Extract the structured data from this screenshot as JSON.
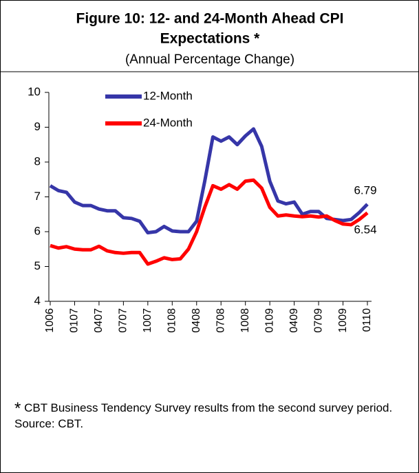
{
  "chart_data": {
    "type": "line",
    "title": [
      "Figure 10: 12- and 24-Month Ahead CPI",
      "Expectations *"
    ],
    "subtitle": "(Annual Percentage Change)",
    "categories": [
      "1006",
      null,
      null,
      "0107",
      null,
      null,
      "0407",
      null,
      null,
      "0707",
      null,
      null,
      "1007",
      null,
      null,
      "0108",
      null,
      null,
      "0408",
      null,
      null,
      "0708",
      null,
      null,
      "1008",
      null,
      null,
      "0109",
      null,
      null,
      "0409",
      null,
      null,
      "0709",
      null,
      null,
      "1009",
      null,
      null,
      "0110"
    ],
    "series": [
      {
        "name": "12-Month",
        "color": "#3636a8",
        "values": [
          7.32,
          7.18,
          7.13,
          6.85,
          6.75,
          6.75,
          6.65,
          6.6,
          6.6,
          6.4,
          6.38,
          6.3,
          5.97,
          6.0,
          6.15,
          6.02,
          6.0,
          6.0,
          6.3,
          7.45,
          8.72,
          8.6,
          8.72,
          8.5,
          8.75,
          8.95,
          8.45,
          7.45,
          6.88,
          6.8,
          6.85,
          6.5,
          6.58,
          6.58,
          6.38,
          6.35,
          6.32,
          6.35,
          6.55,
          6.79
        ]
      },
      {
        "name": "24-Month",
        "color": "#ff0000",
        "values": [
          5.6,
          5.53,
          5.57,
          5.5,
          5.48,
          5.48,
          5.58,
          5.45,
          5.4,
          5.38,
          5.4,
          5.4,
          5.07,
          5.15,
          5.25,
          5.2,
          5.22,
          5.5,
          6.0,
          6.7,
          7.32,
          7.22,
          7.35,
          7.22,
          7.45,
          7.48,
          7.25,
          6.7,
          6.45,
          6.48,
          6.45,
          6.43,
          6.45,
          6.42,
          6.45,
          6.32,
          6.22,
          6.2,
          6.35,
          6.54
        ]
      }
    ],
    "ylim": [
      4,
      10
    ],
    "yticks": [
      4,
      5,
      6,
      7,
      8,
      9,
      10
    ],
    "legend": "upper left",
    "grid": false,
    "footnote_marker": "*",
    "footnote": "CBT Business Tendency Survey results from the second survey period.",
    "source": "Source: CBT."
  }
}
